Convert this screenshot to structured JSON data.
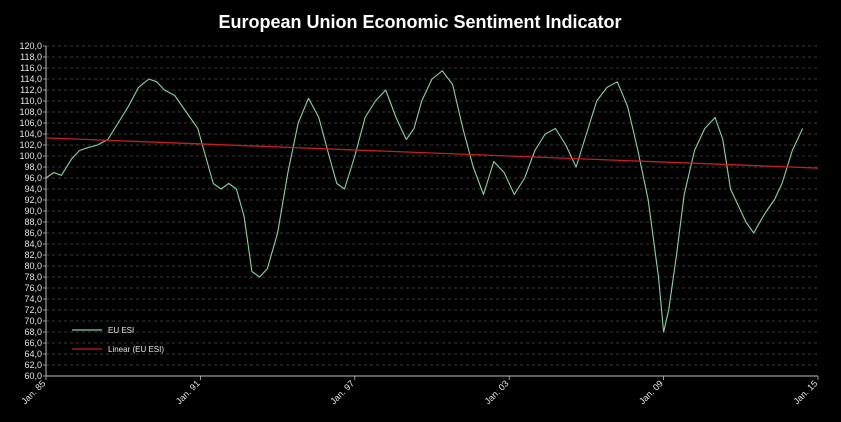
{
  "chart_data": {
    "type": "line",
    "title": "European Union Economic Sentiment Indicator",
    "xlabel": "",
    "ylabel": "",
    "xlim": [
      1985.0,
      2015.0
    ],
    "ylim": [
      60,
      120
    ],
    "y_ticks": [
      "60,0",
      "62,0",
      "64,0",
      "66,0",
      "68,0",
      "70,0",
      "72,0",
      "74,0",
      "76,0",
      "78,0",
      "80,0",
      "82,0",
      "84,0",
      "86,0",
      "88,0",
      "90,0",
      "92,0",
      "94,0",
      "96,0",
      "98,0",
      "100,0",
      "102,0",
      "104,0",
      "106,0",
      "108,0",
      "110,0",
      "112,0",
      "114,0",
      "116,0",
      "118,0",
      "120,0"
    ],
    "x_ticks": [
      {
        "label": "Jan. 85",
        "value": 1985
      },
      {
        "label": "Jan. 91",
        "value": 1991
      },
      {
        "label": "Jan. 97",
        "value": 1997
      },
      {
        "label": "Jan. 03",
        "value": 2003
      },
      {
        "label": "Jan. 09",
        "value": 2009
      },
      {
        "label": "Jan. 15",
        "value": 2015
      }
    ],
    "grid": true,
    "legend": "bottom-left",
    "colors": {
      "background": "#000000",
      "grid": "#4a4a4a",
      "series": "#7fd6a2",
      "trend": "#c81e1e"
    },
    "series": [
      {
        "name": "EU ESI",
        "x": [
          1985.0,
          1985.3,
          1985.6,
          1986.0,
          1986.3,
          1986.6,
          1987.0,
          1987.4,
          1987.8,
          1988.2,
          1988.6,
          1989.0,
          1989.3,
          1989.6,
          1990.0,
          1990.3,
          1990.6,
          1990.9,
          1991.2,
          1991.5,
          1991.8,
          1992.1,
          1992.4,
          1992.7,
          1993.0,
          1993.3,
          1993.6,
          1994.0,
          1994.4,
          1994.8,
          1995.2,
          1995.6,
          1996.0,
          1996.3,
          1996.6,
          1997.0,
          1997.4,
          1997.8,
          1998.2,
          1998.6,
          1999.0,
          1999.3,
          1999.6,
          2000.0,
          2000.4,
          2000.8,
          2001.2,
          2001.6,
          2002.0,
          2002.4,
          2002.8,
          2003.2,
          2003.6,
          2004.0,
          2004.4,
          2004.8,
          2005.2,
          2005.6,
          2006.0,
          2006.4,
          2006.8,
          2007.2,
          2007.6,
          2008.0,
          2008.4,
          2008.8,
          2009.0,
          2009.2,
          2009.5,
          2009.8,
          2010.2,
          2010.6,
          2011.0,
          2011.3,
          2011.6,
          2011.9,
          2012.2,
          2012.5,
          2012.8,
          2013.0,
          2013.3,
          2013.6,
          2014.0,
          2014.4
        ],
        "values": [
          96.0,
          97.0,
          96.5,
          99.5,
          101.0,
          101.5,
          102.0,
          103.0,
          106.0,
          109.0,
          112.5,
          114.0,
          113.5,
          112.0,
          111.0,
          109.0,
          107.0,
          105.0,
          100.0,
          95.0,
          94.0,
          95.0,
          94.0,
          89.0,
          79.0,
          78.0,
          79.5,
          86.0,
          97.0,
          106.0,
          110.5,
          107.0,
          100.0,
          95.0,
          94.0,
          100.0,
          107.0,
          110.0,
          112.0,
          107.0,
          103.0,
          105.0,
          110.0,
          114.0,
          115.5,
          113.0,
          105.0,
          98.0,
          93.0,
          99.0,
          97.0,
          93.0,
          96.0,
          101.0,
          104.0,
          105.0,
          102.0,
          98.0,
          104.0,
          110.0,
          112.5,
          113.5,
          109.0,
          101.0,
          92.0,
          78.0,
          68.0,
          72.0,
          82.0,
          93.0,
          101.0,
          105.0,
          107.0,
          103.0,
          94.0,
          91.0,
          88.0,
          86.0,
          88.5,
          90.0,
          92.0,
          95.0,
          101.0,
          105.0
        ]
      },
      {
        "name": "Linear (EU ESI)",
        "x": [
          1985.0,
          2015.0
        ],
        "values": [
          103.3,
          97.8
        ]
      }
    ]
  }
}
